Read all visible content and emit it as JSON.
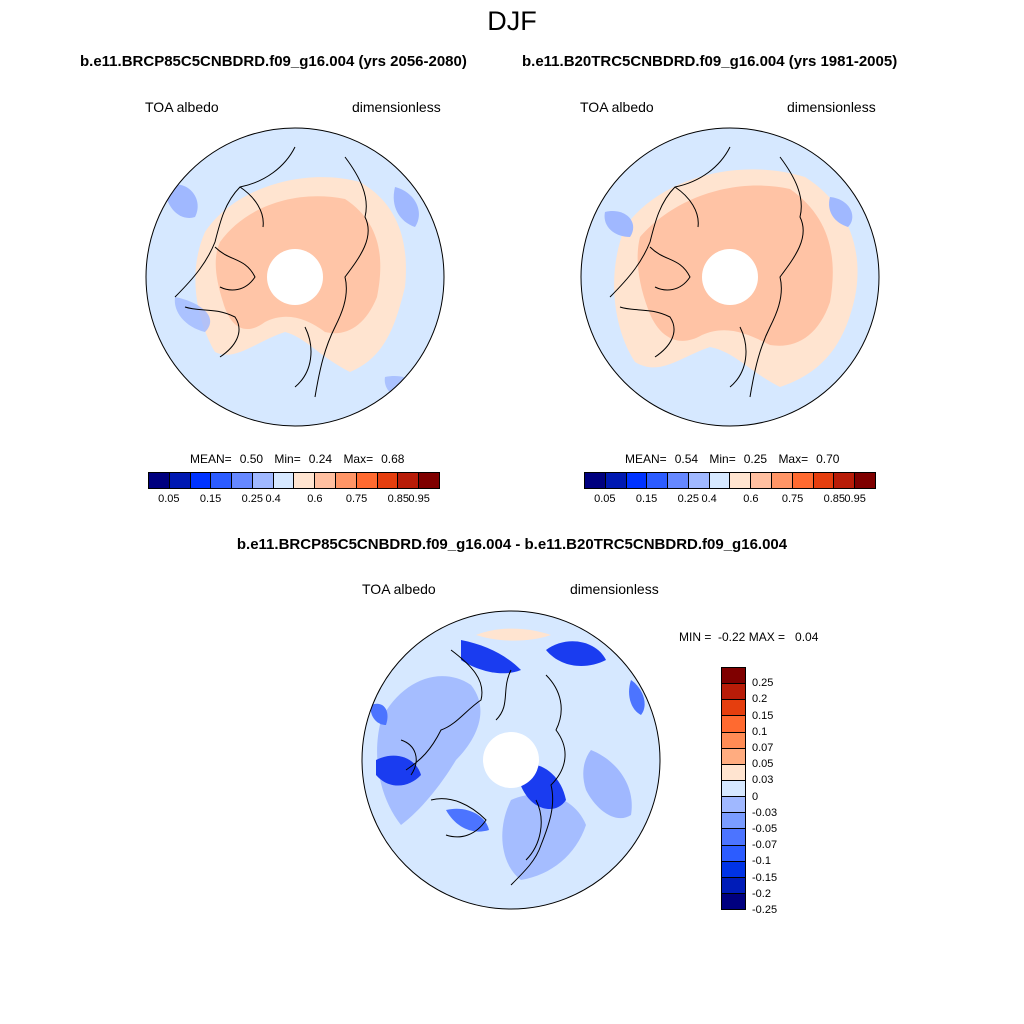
{
  "title": "DJF",
  "panels": [
    {
      "case": "b.e11.BRCP85C5CNBDRD.f09_g16.004 (yrs 2056-2080)",
      "variable": "TOA albedo",
      "units": "dimensionless",
      "stats": {
        "mean_label": "MEAN=",
        "mean": "0.50",
        "min_label": "Min=",
        "min": "0.24",
        "max_label": "Max=",
        "max": "0.68"
      }
    },
    {
      "case": "b.e11.B20TRC5CNBDRD.f09_g16.004 (yrs 1981-2005)",
      "variable": "TOA albedo",
      "units": "dimensionless",
      "stats": {
        "mean_label": "MEAN=",
        "mean": "0.54",
        "min_label": "Min=",
        "min": "0.25",
        "max_label": "Max=",
        "max": "0.70"
      }
    }
  ],
  "diff_panel": {
    "case": "b.e11.BRCP85C5CNBDRD.f09_g16.004 - b.e11.B20TRC5CNBDRD.f09_g16.004",
    "variable": "TOA albedo",
    "units": "dimensionless",
    "minmax": "MIN =  -0.22 MAX =   0.04"
  },
  "colorbar_abs": {
    "colors": [
      "#00007f",
      "#0019b2",
      "#0033ff",
      "#2c5cff",
      "#6688ff",
      "#a0b8ff",
      "#d6e8ff",
      "#ffe4d0",
      "#ffbfa0",
      "#ff9566",
      "#ff6a30",
      "#e53e0e",
      "#b81c08",
      "#7f0000"
    ],
    "tick_labels": [
      "0.05",
      "0.15",
      "0.25",
      "0.4",
      "0.6",
      "0.75",
      "0.85",
      "0.95"
    ]
  },
  "colorbar_diff": {
    "colors": [
      "#7f0000",
      "#b81c08",
      "#e53e0e",
      "#ff6a30",
      "#ff8c55",
      "#ffac80",
      "#ffe4d0",
      "#d6e8ff",
      "#a0b8ff",
      "#7a9cff",
      "#4c74ff",
      "#2c5cff",
      "#0033e6",
      "#001cb8",
      "#00007f"
    ],
    "tick_labels": [
      "0.25",
      "0.2",
      "0.15",
      "0.1",
      "0.07",
      "0.05",
      "0.03",
      "0",
      "-0.03",
      "-0.05",
      "-0.07",
      "-0.1",
      "-0.15",
      "-0.2",
      "-0.25"
    ]
  },
  "map_colors": {
    "background": "#d6e8ff",
    "warm": "#ffe4d0",
    "warmer": "#ffbfa0",
    "cool": "#a0b8ff",
    "cold": "#4c74ff",
    "coldest": "#1a3cf0",
    "coast": "#000000"
  }
}
